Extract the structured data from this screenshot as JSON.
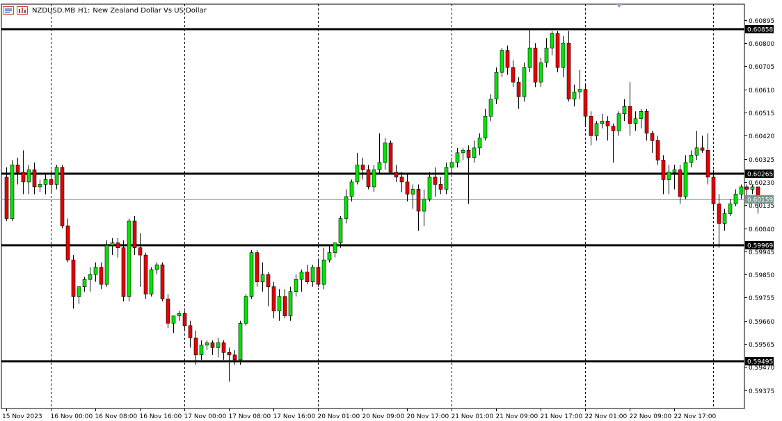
{
  "header": {
    "symbol": "NZDUSD.MB",
    "timeframe": "H1:",
    "description": "New Zealand Dollar Vs US Dollar",
    "icons": [
      "chart-window-icon",
      "chart-template-icon"
    ]
  },
  "colors": {
    "bull": "#00e600",
    "bear": "#e60000",
    "wick": "#000000",
    "level_line": "#000000",
    "bid_line": "#88a8a0",
    "bid_label_bg": "#789890",
    "label_bg": "#000000",
    "label_text": "#ffffff",
    "grid": "#000000"
  },
  "chart_data": {
    "type": "candlestick",
    "symbol": "NZDUSD.MB",
    "timeframe": "H1",
    "y_range": [
      0.593,
      0.6096
    ],
    "y_ticks": [
      "0.60895",
      "0.60800",
      "0.60705",
      "0.60610",
      "0.60515",
      "0.60420",
      "0.60325",
      "0.60230",
      "0.60135",
      "0.60040",
      "0.59945",
      "0.59850",
      "0.59755",
      "0.59660",
      "0.59565",
      "0.59470",
      "0.59375"
    ],
    "x_labels": [
      "15 Nov 2023",
      "16 Nov 00:00",
      "16 Nov 08:00",
      "16 Nov 16:00",
      "17 Nov 00:00",
      "17 Nov 08:00",
      "17 Nov 16:00",
      "20 Nov 01:00",
      "20 Nov 09:00",
      "20 Nov 17:00",
      "21 Nov 01:00",
      "21 Nov 09:00",
      "21 Nov 17:00",
      "22 Nov 01:00",
      "22 Nov 09:00",
      "22 Nov 17:00"
    ],
    "label_bars": [
      0,
      8,
      16,
      24,
      32,
      40,
      48,
      56,
      64,
      72,
      80,
      88,
      96,
      104,
      112,
      120
    ],
    "vgrid_bars": [
      8,
      32,
      56,
      80,
      104,
      127
    ],
    "levels": [
      {
        "name": "resistance-high",
        "value": 0.60858,
        "label": "0.60858"
      },
      {
        "name": "resistance-mid",
        "value": 0.60265,
        "label": "0.60265"
      },
      {
        "name": "support-mid",
        "value": 0.59969,
        "label": "0.59969"
      },
      {
        "name": "support-low",
        "value": 0.59495,
        "label": "0.59495"
      }
    ],
    "bid": {
      "value": 0.60159,
      "label": "0.60159"
    },
    "candles": [
      [
        0.6025,
        0.6029,
        0.6007,
        0.6008
      ],
      [
        0.6008,
        0.6032,
        0.6007,
        0.603
      ],
      [
        0.603,
        0.6033,
        0.6022,
        0.6027
      ],
      [
        0.6027,
        0.6036,
        0.6018,
        0.6023
      ],
      [
        0.6023,
        0.603,
        0.6018,
        0.6028
      ],
      [
        0.6028,
        0.6031,
        0.6018,
        0.6021
      ],
      [
        0.6021,
        0.6024,
        0.6019,
        0.6022
      ],
      [
        0.6022,
        0.6026,
        0.6018,
        0.6024
      ],
      [
        0.6024,
        0.6028,
        0.6019,
        0.6022
      ],
      [
        0.6022,
        0.603,
        0.602,
        0.6029
      ],
      [
        0.6029,
        0.603,
        0.6004,
        0.6005
      ],
      [
        0.6005,
        0.6008,
        0.599,
        0.5991
      ],
      [
        0.5991,
        0.5993,
        0.5971,
        0.5976
      ],
      [
        0.5976,
        0.598,
        0.5973,
        0.598
      ],
      [
        0.598,
        0.5984,
        0.5978,
        0.5983
      ],
      [
        0.5983,
        0.5988,
        0.5978,
        0.5985
      ],
      [
        0.5985,
        0.599,
        0.5982,
        0.5988
      ],
      [
        0.5988,
        0.599,
        0.5979,
        0.5981
      ],
      [
        0.5981,
        0.5999,
        0.598,
        0.5997
      ],
      [
        0.5997,
        0.6,
        0.5993,
        0.5998
      ],
      [
        0.5998,
        0.6,
        0.5992,
        0.5996
      ],
      [
        0.5996,
        0.5999,
        0.5974,
        0.5976
      ],
      [
        0.5976,
        0.6008,
        0.5974,
        0.6007
      ],
      [
        0.6007,
        0.6009,
        0.5993,
        0.5996
      ],
      [
        0.5996,
        0.6002,
        0.598,
        0.5993
      ],
      [
        0.5993,
        0.5994,
        0.5975,
        0.5977
      ],
      [
        0.5977,
        0.5988,
        0.5976,
        0.5987
      ],
      [
        0.5987,
        0.599,
        0.5985,
        0.5989
      ],
      [
        0.5989,
        0.599,
        0.5974,
        0.5975
      ],
      [
        0.5975,
        0.5977,
        0.5963,
        0.5965
      ],
      [
        0.5965,
        0.5968,
        0.5961,
        0.5968
      ],
      [
        0.5968,
        0.597,
        0.5966,
        0.5969
      ],
      [
        0.5969,
        0.597,
        0.5962,
        0.5964
      ],
      [
        0.5964,
        0.5966,
        0.5955,
        0.5959
      ],
      [
        0.5959,
        0.5962,
        0.5948,
        0.5952
      ],
      [
        0.5952,
        0.5958,
        0.595,
        0.5956
      ],
      [
        0.5956,
        0.5958,
        0.5954,
        0.5957
      ],
      [
        0.5957,
        0.5958,
        0.5952,
        0.5955
      ],
      [
        0.5955,
        0.5959,
        0.5951,
        0.5957
      ],
      [
        0.5957,
        0.5958,
        0.595,
        0.5953
      ],
      [
        0.5953,
        0.5955,
        0.5941,
        0.5952
      ],
      [
        0.5952,
        0.5954,
        0.5948,
        0.595
      ],
      [
        0.595,
        0.5966,
        0.5948,
        0.5965
      ],
      [
        0.5965,
        0.5977,
        0.5964,
        0.5976
      ],
      [
        0.5976,
        0.5995,
        0.5975,
        0.5994
      ],
      [
        0.5994,
        0.5995,
        0.598,
        0.5982
      ],
      [
        0.5982,
        0.599,
        0.5978,
        0.5985
      ],
      [
        0.5985,
        0.5986,
        0.5972,
        0.598
      ],
      [
        0.598,
        0.5982,
        0.5967,
        0.597
      ],
      [
        0.597,
        0.5979,
        0.5966,
        0.5976
      ],
      [
        0.5976,
        0.5979,
        0.5967,
        0.5968
      ],
      [
        0.5968,
        0.598,
        0.5966,
        0.5978
      ],
      [
        0.5978,
        0.5985,
        0.5976,
        0.5983
      ],
      [
        0.5983,
        0.5987,
        0.5978,
        0.5986
      ],
      [
        0.5986,
        0.5989,
        0.5981,
        0.5982
      ],
      [
        0.5982,
        0.5989,
        0.598,
        0.5988
      ],
      [
        0.5988,
        0.5991,
        0.598,
        0.5981
      ],
      [
        0.5981,
        0.5996,
        0.5979,
        0.5991
      ],
      [
        0.5991,
        0.5997,
        0.599,
        0.5994
      ],
      [
        0.5994,
        0.5998,
        0.5992,
        0.5998
      ],
      [
        0.5998,
        0.6009,
        0.5996,
        0.6008
      ],
      [
        0.6008,
        0.602,
        0.6006,
        0.6017
      ],
      [
        0.6017,
        0.6024,
        0.6015,
        0.6023
      ],
      [
        0.6023,
        0.6035,
        0.6022,
        0.603
      ],
      [
        0.603,
        0.6033,
        0.6024,
        0.6028
      ],
      [
        0.6028,
        0.603,
        0.602,
        0.6021
      ],
      [
        0.6021,
        0.603,
        0.6019,
        0.6028
      ],
      [
        0.6028,
        0.6043,
        0.6026,
        0.6031
      ],
      [
        0.6031,
        0.6041,
        0.6028,
        0.6039
      ],
      [
        0.6039,
        0.604,
        0.6026,
        0.6027
      ],
      [
        0.6027,
        0.603,
        0.6023,
        0.6025
      ],
      [
        0.6025,
        0.6027,
        0.6019,
        0.6023
      ],
      [
        0.6023,
        0.6026,
        0.6015,
        0.6018
      ],
      [
        0.6018,
        0.6022,
        0.6012,
        0.602
      ],
      [
        0.602,
        0.6022,
        0.6003,
        0.6011
      ],
      [
        0.6011,
        0.602,
        0.6005,
        0.6016
      ],
      [
        0.6016,
        0.6027,
        0.6015,
        0.6025
      ],
      [
        0.6025,
        0.6029,
        0.6017,
        0.6022
      ],
      [
        0.6022,
        0.6025,
        0.6018,
        0.602
      ],
      [
        0.602,
        0.6031,
        0.6018,
        0.6029
      ],
      [
        0.6029,
        0.6033,
        0.6026,
        0.6031
      ],
      [
        0.6031,
        0.6037,
        0.6029,
        0.6035
      ],
      [
        0.6035,
        0.6037,
        0.6032,
        0.6036
      ],
      [
        0.6036,
        0.6038,
        0.6014,
        0.6033
      ],
      [
        0.6033,
        0.604,
        0.6031,
        0.6037
      ],
      [
        0.6037,
        0.6043,
        0.6034,
        0.6041
      ],
      [
        0.6041,
        0.6053,
        0.604,
        0.605
      ],
      [
        0.605,
        0.6059,
        0.6048,
        0.6057
      ],
      [
        0.6057,
        0.607,
        0.6055,
        0.6068
      ],
      [
        0.6068,
        0.6078,
        0.6066,
        0.6077
      ],
      [
        0.6077,
        0.6079,
        0.6067,
        0.607
      ],
      [
        0.607,
        0.6073,
        0.6062,
        0.6064
      ],
      [
        0.6064,
        0.6066,
        0.6053,
        0.6058
      ],
      [
        0.6058,
        0.6072,
        0.6056,
        0.607
      ],
      [
        0.607,
        0.6086,
        0.6068,
        0.6078
      ],
      [
        0.6078,
        0.608,
        0.6062,
        0.6064
      ],
      [
        0.6064,
        0.6074,
        0.6062,
        0.6072
      ],
      [
        0.6072,
        0.6082,
        0.607,
        0.6078
      ],
      [
        0.6078,
        0.6085,
        0.6075,
        0.6084
      ],
      [
        0.6084,
        0.6085,
        0.6068,
        0.607
      ],
      [
        0.607,
        0.6083,
        0.6066,
        0.608
      ],
      [
        0.608,
        0.6085,
        0.6056,
        0.6057
      ],
      [
        0.6057,
        0.6063,
        0.6054,
        0.606
      ],
      [
        0.606,
        0.6069,
        0.6057,
        0.6061
      ],
      [
        0.6061,
        0.6063,
        0.6046,
        0.605
      ],
      [
        0.605,
        0.6052,
        0.6038,
        0.6042
      ],
      [
        0.6042,
        0.6048,
        0.604,
        0.6047
      ],
      [
        0.6047,
        0.6051,
        0.6045,
        0.6048
      ],
      [
        0.6048,
        0.605,
        0.604,
        0.6046
      ],
      [
        0.6046,
        0.6047,
        0.6031,
        0.6044
      ],
      [
        0.6044,
        0.6052,
        0.6042,
        0.6051
      ],
      [
        0.6051,
        0.6057,
        0.6048,
        0.6054
      ],
      [
        0.6054,
        0.6064,
        0.6042,
        0.6047
      ],
      [
        0.6047,
        0.6052,
        0.6044,
        0.6049
      ],
      [
        0.6049,
        0.6053,
        0.6045,
        0.6052
      ],
      [
        0.6052,
        0.6053,
        0.604,
        0.6043
      ],
      [
        0.6043,
        0.6044,
        0.6035,
        0.604
      ],
      [
        0.604,
        0.6042,
        0.603,
        0.6032
      ],
      [
        0.6032,
        0.6034,
        0.6018,
        0.6024
      ],
      [
        0.6024,
        0.603,
        0.6018,
        0.6027
      ],
      [
        0.6027,
        0.603,
        0.602,
        0.6028
      ],
      [
        0.6028,
        0.603,
        0.6014,
        0.6017
      ],
      [
        0.6017,
        0.6034,
        0.6016,
        0.6031
      ],
      [
        0.6031,
        0.6036,
        0.6029,
        0.6034
      ],
      [
        0.6034,
        0.6044,
        0.6032,
        0.6037
      ],
      [
        0.6037,
        0.6042,
        0.6035,
        0.6036
      ],
      [
        0.6036,
        0.6043,
        0.6022,
        0.6025
      ],
      [
        0.6025,
        0.6028,
        0.6011,
        0.6014
      ],
      [
        0.6014,
        0.6018,
        0.5996,
        0.6006
      ],
      [
        0.6006,
        0.6012,
        0.6003,
        0.601
      ],
      [
        0.601,
        0.6016,
        0.6009,
        0.6014
      ],
      [
        0.6014,
        0.602,
        0.6013,
        0.6018
      ],
      [
        0.6018,
        0.6022,
        0.6016,
        0.6021
      ],
      [
        0.6021,
        0.6022,
        0.6017,
        0.602
      ],
      [
        0.602,
        0.6022,
        0.6018,
        0.6021
      ],
      [
        0.6021,
        0.6021,
        0.601,
        0.6016
      ]
    ]
  }
}
